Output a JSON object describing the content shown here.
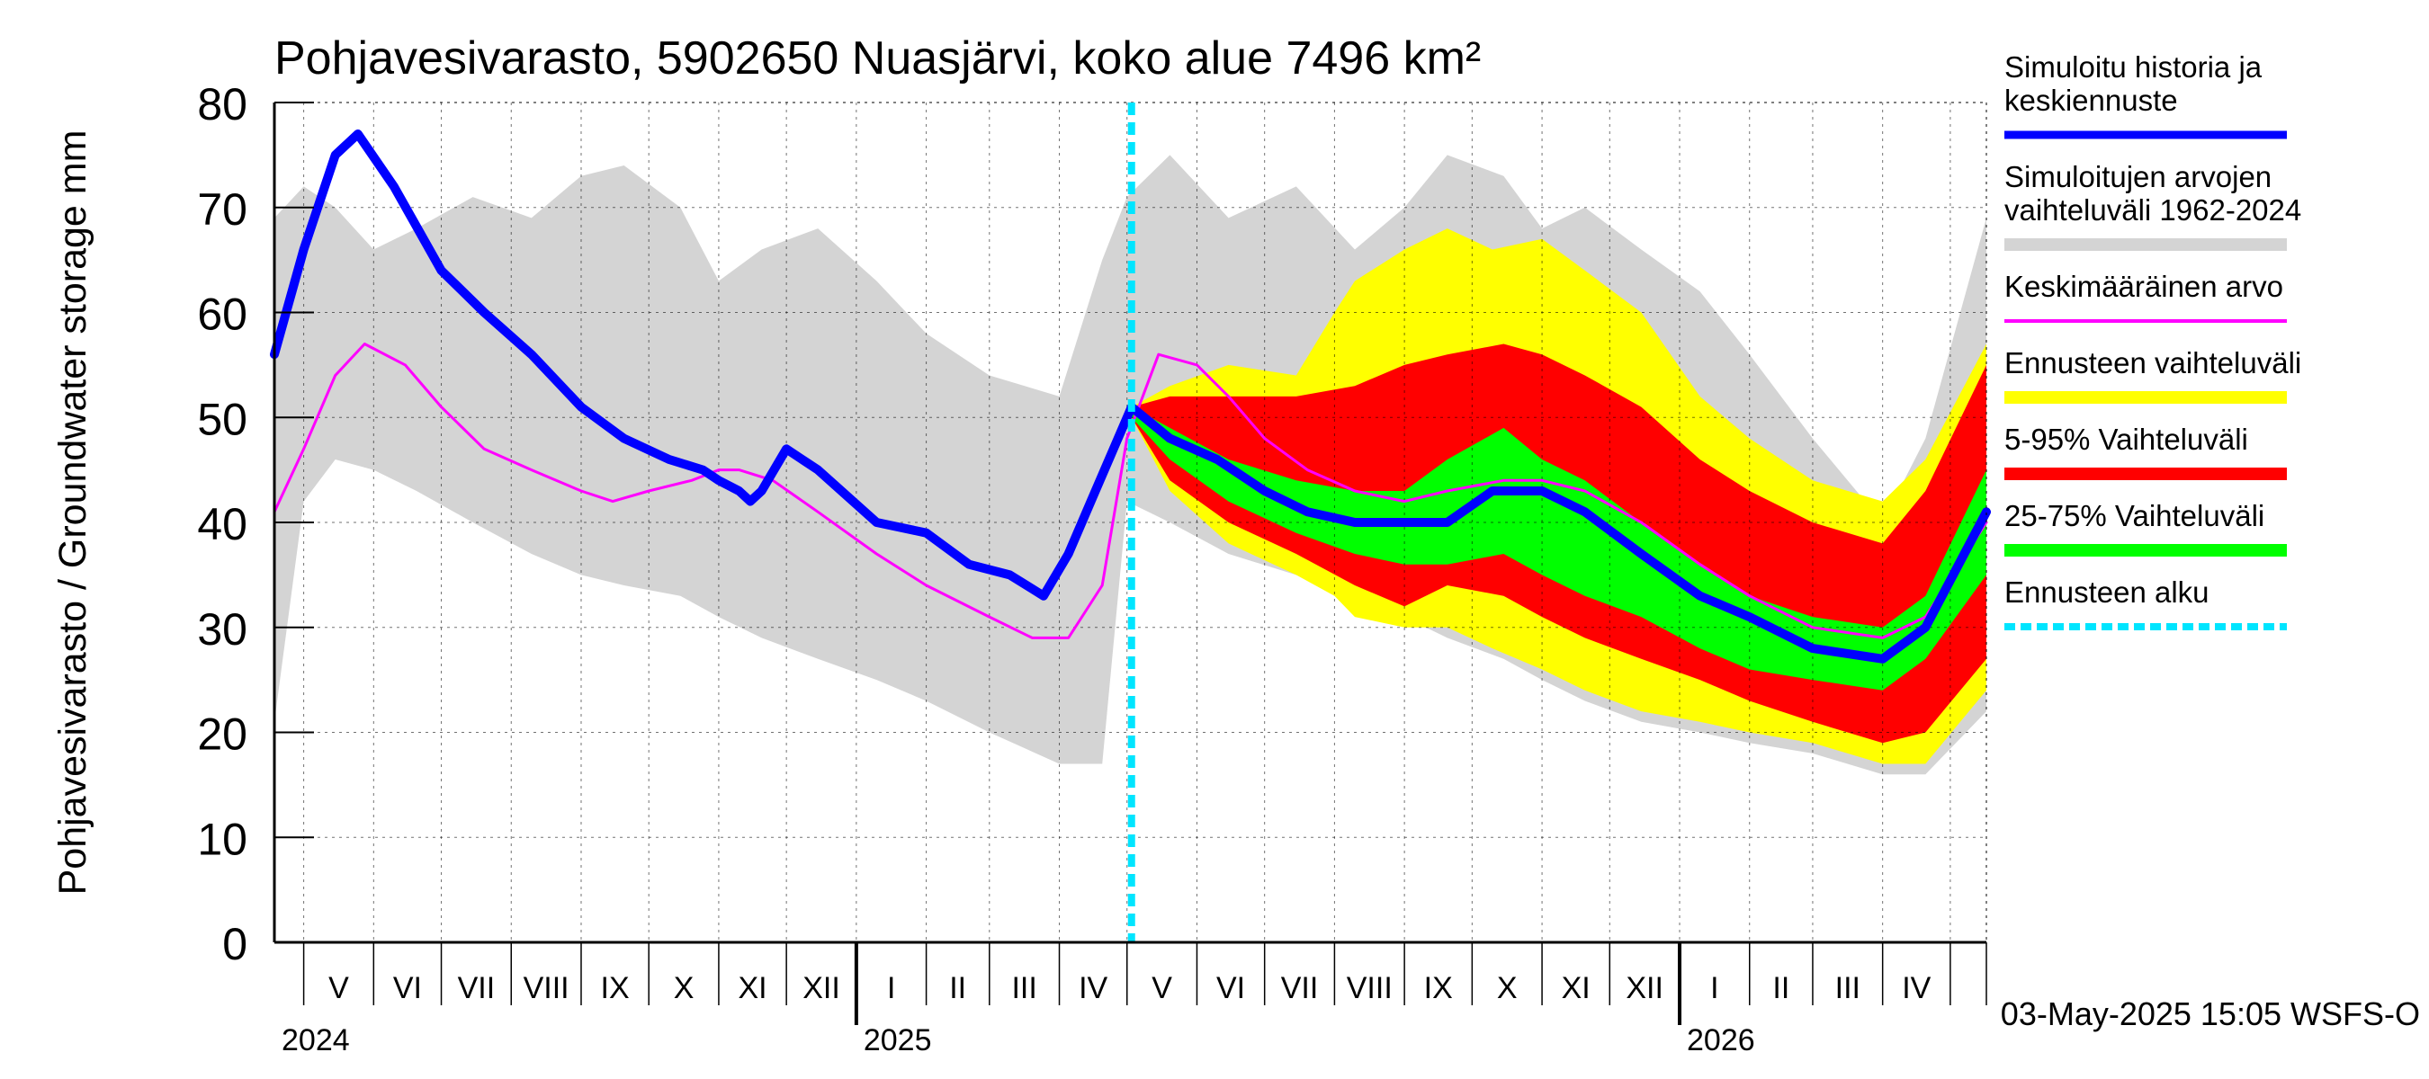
{
  "chart_data": {
    "type": "area",
    "title": "Pohjavesivarasto, 5902650 Nuasjärvi, koko alue 7496 km²",
    "ylabel": "Pohjavesivarasto / Groundwater storage   mm",
    "ylim": [
      0,
      80
    ],
    "yticks": [
      0,
      10,
      20,
      30,
      40,
      50,
      60,
      70,
      80
    ],
    "xlim": [
      "2024-04-18",
      "2026-05-17"
    ],
    "forecast_start": "2025-05-03",
    "months": [
      {
        "label": "V",
        "start": "2024-05-01"
      },
      {
        "label": "VI",
        "start": "2024-06-01"
      },
      {
        "label": "VII",
        "start": "2024-07-01"
      },
      {
        "label": "VIII",
        "start": "2024-08-01"
      },
      {
        "label": "IX",
        "start": "2024-09-01"
      },
      {
        "label": "X",
        "start": "2024-10-01"
      },
      {
        "label": "XI",
        "start": "2024-11-01"
      },
      {
        "label": "XII",
        "start": "2024-12-01"
      },
      {
        "label": "I",
        "start": "2025-01-01"
      },
      {
        "label": "II",
        "start": "2025-02-01"
      },
      {
        "label": "III",
        "start": "2025-03-01"
      },
      {
        "label": "IV",
        "start": "2025-04-01"
      },
      {
        "label": "V",
        "start": "2025-05-01"
      },
      {
        "label": "VI",
        "start": "2025-06-01"
      },
      {
        "label": "VII",
        "start": "2025-07-01"
      },
      {
        "label": "VIII",
        "start": "2025-08-01"
      },
      {
        "label": "IX",
        "start": "2025-09-01"
      },
      {
        "label": "X",
        "start": "2025-10-01"
      },
      {
        "label": "XI",
        "start": "2025-11-01"
      },
      {
        "label": "XII",
        "start": "2025-12-01"
      },
      {
        "label": "I",
        "start": "2026-01-01"
      },
      {
        "label": "II",
        "start": "2026-02-01"
      },
      {
        "label": "III",
        "start": "2026-03-01"
      },
      {
        "label": "IV",
        "start": "2026-04-01"
      },
      {
        "label": "",
        "start": "2026-05-01"
      }
    ],
    "years": [
      {
        "label": "2024",
        "start": "2024-04-18"
      },
      {
        "label": "2025",
        "start": "2025-01-01"
      },
      {
        "label": "2026",
        "start": "2026-01-01"
      }
    ],
    "series": [
      {
        "name": "Simuloitujen arvojen vaihteluväli 1962-2024",
        "color": "#d4d4d4",
        "kind": "band",
        "x": [
          "2024-04-18",
          "2024-05-01",
          "2024-05-15",
          "2024-06-01",
          "2024-06-20",
          "2024-07-15",
          "2024-08-10",
          "2024-09-01",
          "2024-09-20",
          "2024-10-15",
          "2024-11-01",
          "2024-11-20",
          "2024-12-15",
          "2025-01-10",
          "2025-02-01",
          "2025-03-01",
          "2025-04-01",
          "2025-04-20",
          "2025-05-01",
          "2025-05-20",
          "2025-06-15",
          "2025-07-15",
          "2025-08-10",
          "2025-09-01",
          "2025-09-20",
          "2025-10-15",
          "2025-11-01",
          "2025-11-20",
          "2025-12-15",
          "2026-01-10",
          "2026-02-01",
          "2026-03-01",
          "2026-04-01",
          "2026-04-20",
          "2026-05-17"
        ],
        "upper": [
          69,
          72,
          70,
          66,
          68,
          71,
          69,
          73,
          74,
          70,
          63,
          66,
          68,
          63,
          58,
          54,
          52,
          65,
          71,
          75,
          69,
          72,
          66,
          70,
          75,
          73,
          68,
          70,
          66,
          62,
          56,
          48,
          40,
          48,
          69
        ],
        "lower": [
          21,
          42,
          46,
          45,
          43,
          40,
          37,
          35,
          34,
          33,
          31,
          29,
          27,
          25,
          23,
          20,
          17,
          17,
          42,
          40,
          37,
          35,
          33,
          31,
          29,
          27,
          25,
          23,
          21,
          20,
          19,
          18,
          16,
          16,
          22
        ]
      },
      {
        "name": "Ennusteen vaihteluväli",
        "color": "#ffff00",
        "kind": "band",
        "x": [
          "2025-05-03",
          "2025-05-20",
          "2025-06-15",
          "2025-07-15",
          "2025-08-01",
          "2025-08-10",
          "2025-09-01",
          "2025-09-20",
          "2025-10-10",
          "2025-11-01",
          "2025-11-20",
          "2025-12-15",
          "2026-01-10",
          "2026-02-01",
          "2026-03-01",
          "2026-04-01",
          "2026-04-20",
          "2026-05-17"
        ],
        "upper": [
          51,
          53,
          55,
          54,
          60,
          63,
          66,
          68,
          66,
          67,
          64,
          60,
          52,
          48,
          44,
          42,
          46,
          57
        ],
        "lower": [
          50,
          43,
          38,
          35,
          33,
          31,
          30,
          30,
          28,
          26,
          24,
          22,
          21,
          20,
          19,
          17,
          17,
          24
        ]
      },
      {
        "name": "5-95% Vaihteluväli",
        "color": "#ff0000",
        "kind": "band",
        "x": [
          "2025-05-03",
          "2025-05-20",
          "2025-06-15",
          "2025-07-15",
          "2025-08-10",
          "2025-09-01",
          "2025-09-20",
          "2025-10-15",
          "2025-11-01",
          "2025-11-20",
          "2025-12-15",
          "2026-01-10",
          "2026-02-01",
          "2026-03-01",
          "2026-04-01",
          "2026-04-20",
          "2026-05-17"
        ],
        "upper": [
          51,
          52,
          52,
          52,
          53,
          55,
          56,
          57,
          56,
          54,
          51,
          46,
          43,
          40,
          38,
          43,
          55
        ],
        "lower": [
          50,
          44,
          40,
          37,
          34,
          32,
          34,
          33,
          31,
          29,
          27,
          25,
          23,
          21,
          19,
          20,
          27
        ]
      },
      {
        "name": "25-75% Vaihteluväli",
        "color": "#00ff00",
        "kind": "band",
        "x": [
          "2025-05-03",
          "2025-05-20",
          "2025-06-15",
          "2025-07-15",
          "2025-08-10",
          "2025-09-01",
          "2025-09-20",
          "2025-10-15",
          "2025-11-01",
          "2025-11-20",
          "2025-12-15",
          "2026-01-10",
          "2026-02-01",
          "2026-03-01",
          "2026-04-01",
          "2026-04-20",
          "2026-05-17"
        ],
        "upper": [
          51,
          49,
          46,
          44,
          43,
          43,
          46,
          49,
          46,
          44,
          40,
          36,
          33,
          31,
          30,
          33,
          45
        ],
        "lower": [
          50,
          46,
          42,
          39,
          37,
          36,
          36,
          37,
          35,
          33,
          31,
          28,
          26,
          25,
          24,
          27,
          35
        ]
      },
      {
        "name": "Keskimääräinen arvo",
        "color": "#ff00ff",
        "kind": "line",
        "width": 3,
        "x": [
          "2024-04-18",
          "2024-05-01",
          "2024-05-15",
          "2024-05-28",
          "2024-06-15",
          "2024-07-01",
          "2024-07-20",
          "2024-08-10",
          "2024-09-01",
          "2024-09-15",
          "2024-10-01",
          "2024-10-20",
          "2024-11-01",
          "2024-11-10",
          "2024-11-25",
          "2024-12-15",
          "2025-01-10",
          "2025-02-01",
          "2025-03-01",
          "2025-03-20",
          "2025-04-05",
          "2025-04-20",
          "2025-05-01",
          "2025-05-15",
          "2025-06-01",
          "2025-06-15",
          "2025-07-01",
          "2025-07-20",
          "2025-08-10",
          "2025-09-01",
          "2025-09-20",
          "2025-10-15",
          "2025-11-01",
          "2025-11-20",
          "2025-12-15",
          "2026-01-10",
          "2026-02-01",
          "2026-03-01",
          "2026-04-01",
          "2026-04-20",
          "2026-05-17"
        ],
        "values": [
          41,
          47,
          54,
          57,
          55,
          51,
          47,
          45,
          43,
          42,
          43,
          44,
          45,
          45,
          44,
          41,
          37,
          34,
          31,
          29,
          29,
          34,
          48,
          56,
          55,
          52,
          48,
          45,
          43,
          42,
          43,
          44,
          44,
          43,
          40,
          36,
          33,
          30,
          29,
          31,
          40
        ]
      },
      {
        "name": "Simuloitu historia ja keskiennuste",
        "color": "#0000ff",
        "kind": "line",
        "width": 10,
        "x": [
          "2024-04-18",
          "2024-05-01",
          "2024-05-15",
          "2024-05-25",
          "2024-06-10",
          "2024-07-01",
          "2024-07-20",
          "2024-08-10",
          "2024-09-01",
          "2024-09-20",
          "2024-10-10",
          "2024-10-25",
          "2024-11-01",
          "2024-11-10",
          "2024-11-15",
          "2024-11-20",
          "2024-12-01",
          "2024-12-15",
          "2025-01-10",
          "2025-02-01",
          "2025-02-20",
          "2025-03-10",
          "2025-03-25",
          "2025-04-05",
          "2025-04-15",
          "2025-04-25",
          "2025-05-03",
          "2025-05-20",
          "2025-06-10",
          "2025-07-01",
          "2025-07-20",
          "2025-08-10",
          "2025-09-01",
          "2025-09-20",
          "2025-10-10",
          "2025-11-01",
          "2025-11-20",
          "2025-12-15",
          "2026-01-10",
          "2026-02-01",
          "2026-03-01",
          "2026-04-01",
          "2026-04-20",
          "2026-05-17"
        ],
        "values": [
          56,
          66,
          75,
          77,
          72,
          64,
          60,
          56,
          51,
          48,
          46,
          45,
          44,
          43,
          42,
          43,
          47,
          45,
          40,
          39,
          36,
          35,
          33,
          37,
          42,
          47,
          51,
          48,
          46,
          43,
          41,
          40,
          40,
          40,
          43,
          43,
          41,
          37,
          33,
          31,
          28,
          27,
          30,
          41
        ]
      },
      {
        "name": "Ennusteen alku",
        "color": "#00e5ff",
        "kind": "vline",
        "x": "2025-05-03"
      }
    ],
    "legend_position": "right",
    "footer": "03-May-2025 15:05 WSFS-O"
  }
}
